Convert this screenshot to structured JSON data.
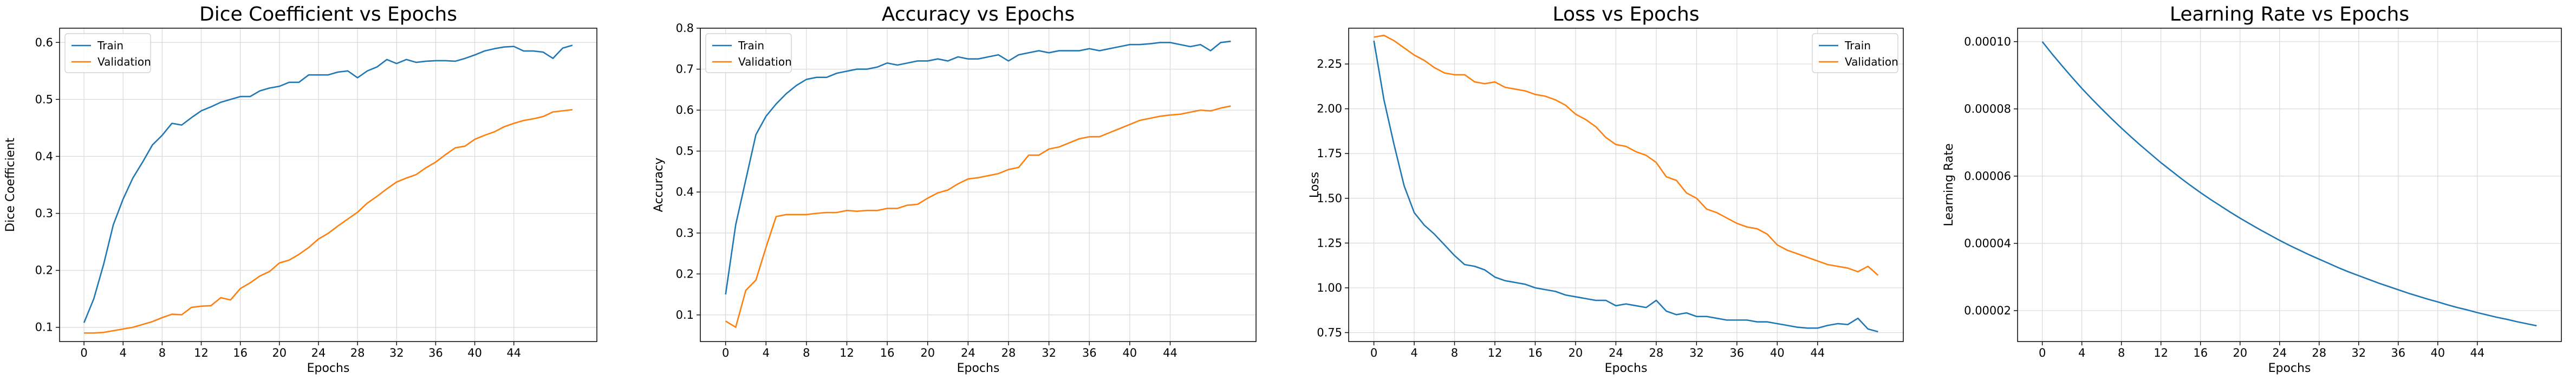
{
  "chart_data": [
    {
      "type": "line",
      "title": "Dice Coefficient vs Epochs",
      "xlabel": "Epochs",
      "ylabel": "Dice Coefficient",
      "xlim": [
        -2.5,
        52.5
      ],
      "ylim": [
        0.075,
        0.625
      ],
      "xticks": [
        0,
        4,
        8,
        12,
        16,
        20,
        24,
        28,
        32,
        36,
        40,
        44
      ],
      "yticks": [
        0.1,
        0.2,
        0.3,
        0.4,
        0.5,
        0.6
      ],
      "ytick_labels": [
        "0.1",
        "0.2",
        "0.3",
        "0.4",
        "0.5",
        "0.6"
      ],
      "grid": true,
      "legend": "upper left",
      "series": [
        {
          "name": "Train",
          "color": "#1f77b4",
          "x": [
            0,
            1,
            2,
            3,
            4,
            5,
            6,
            7,
            8,
            9,
            10,
            11,
            12,
            13,
            14,
            15,
            16,
            17,
            18,
            19,
            20,
            21,
            22,
            23,
            24,
            25,
            26,
            27,
            28,
            29,
            30,
            31,
            32,
            33,
            34,
            35,
            36,
            37,
            38,
            39,
            40,
            41,
            42,
            43,
            44,
            45,
            46,
            47,
            48,
            49,
            50
          ],
          "values": [
            0.108,
            0.15,
            0.21,
            0.28,
            0.325,
            0.362,
            0.39,
            0.42,
            0.437,
            0.458,
            0.455,
            0.468,
            0.48,
            0.487,
            0.495,
            0.5,
            0.505,
            0.505,
            0.515,
            0.52,
            0.523,
            0.53,
            0.53,
            0.543,
            0.543,
            0.543,
            0.548,
            0.55,
            0.538,
            0.55,
            0.557,
            0.57,
            0.563,
            0.57,
            0.565,
            0.567,
            0.568,
            0.568,
            0.567,
            0.572,
            0.578,
            0.585,
            0.589,
            0.592,
            0.593,
            0.585,
            0.585,
            0.583,
            0.572,
            0.59,
            0.595
          ]
        },
        {
          "name": "Validation",
          "color": "#ff7f0e",
          "x": [
            0,
            1,
            2,
            3,
            4,
            5,
            6,
            7,
            8,
            9,
            10,
            11,
            12,
            13,
            14,
            15,
            16,
            17,
            18,
            19,
            20,
            21,
            22,
            23,
            24,
            25,
            26,
            27,
            28,
            29,
            30,
            31,
            32,
            33,
            34,
            35,
            36,
            37,
            38,
            39,
            40,
            41,
            42,
            43,
            44,
            45,
            46,
            47,
            48,
            49,
            50
          ],
          "values": [
            0.09,
            0.09,
            0.091,
            0.094,
            0.097,
            0.1,
            0.105,
            0.11,
            0.117,
            0.123,
            0.122,
            0.135,
            0.137,
            0.138,
            0.152,
            0.148,
            0.168,
            0.178,
            0.19,
            0.198,
            0.213,
            0.218,
            0.228,
            0.24,
            0.255,
            0.265,
            0.278,
            0.29,
            0.302,
            0.318,
            0.33,
            0.343,
            0.355,
            0.362,
            0.368,
            0.38,
            0.39,
            0.403,
            0.415,
            0.418,
            0.43,
            0.437,
            0.443,
            0.452,
            0.458,
            0.463,
            0.466,
            0.47,
            0.478,
            0.48,
            0.482
          ]
        }
      ]
    },
    {
      "type": "line",
      "title": "Accuracy vs Epochs",
      "xlabel": "Epochs",
      "ylabel": "Accuracy",
      "xlim": [
        -2.5,
        52.5
      ],
      "ylim": [
        0.035,
        0.8
      ],
      "xticks": [
        0,
        4,
        8,
        12,
        16,
        20,
        24,
        28,
        32,
        36,
        40,
        44
      ],
      "yticks": [
        0.1,
        0.2,
        0.3,
        0.4,
        0.5,
        0.6,
        0.7,
        0.8
      ],
      "ytick_labels": [
        "0.1",
        "0.2",
        "0.3",
        "0.4",
        "0.5",
        "0.6",
        "0.7",
        "0.8"
      ],
      "grid": true,
      "legend": "upper left",
      "series": [
        {
          "name": "Train",
          "color": "#1f77b4",
          "x": [
            0,
            1,
            2,
            3,
            4,
            5,
            6,
            7,
            8,
            9,
            10,
            11,
            12,
            13,
            14,
            15,
            16,
            17,
            18,
            19,
            20,
            21,
            22,
            23,
            24,
            25,
            26,
            27,
            28,
            29,
            30,
            31,
            32,
            33,
            34,
            35,
            36,
            37,
            38,
            39,
            40,
            41,
            42,
            43,
            44,
            45,
            46,
            47,
            48,
            49,
            50
          ],
          "values": [
            0.15,
            0.32,
            0.43,
            0.54,
            0.585,
            0.615,
            0.64,
            0.66,
            0.675,
            0.68,
            0.68,
            0.69,
            0.695,
            0.7,
            0.7,
            0.705,
            0.715,
            0.71,
            0.715,
            0.72,
            0.72,
            0.725,
            0.72,
            0.73,
            0.725,
            0.725,
            0.73,
            0.735,
            0.72,
            0.735,
            0.74,
            0.745,
            0.74,
            0.745,
            0.745,
            0.745,
            0.75,
            0.745,
            0.75,
            0.755,
            0.76,
            0.76,
            0.762,
            0.765,
            0.765,
            0.76,
            0.755,
            0.76,
            0.745,
            0.765,
            0.768
          ]
        },
        {
          "name": "Validation",
          "color": "#ff7f0e",
          "x": [
            0,
            1,
            2,
            3,
            4,
            5,
            6,
            7,
            8,
            9,
            10,
            11,
            12,
            13,
            14,
            15,
            16,
            17,
            18,
            19,
            20,
            21,
            22,
            23,
            24,
            25,
            26,
            27,
            28,
            29,
            30,
            31,
            32,
            33,
            34,
            35,
            36,
            37,
            38,
            39,
            40,
            41,
            42,
            43,
            44,
            45,
            46,
            47,
            48,
            49,
            50
          ],
          "values": [
            0.085,
            0.07,
            0.16,
            0.185,
            0.265,
            0.34,
            0.345,
            0.345,
            0.345,
            0.348,
            0.35,
            0.35,
            0.355,
            0.353,
            0.355,
            0.355,
            0.36,
            0.36,
            0.368,
            0.37,
            0.385,
            0.398,
            0.405,
            0.42,
            0.432,
            0.435,
            0.44,
            0.445,
            0.455,
            0.46,
            0.49,
            0.49,
            0.505,
            0.51,
            0.52,
            0.53,
            0.535,
            0.535,
            0.545,
            0.555,
            0.565,
            0.575,
            0.58,
            0.585,
            0.588,
            0.59,
            0.595,
            0.6,
            0.598,
            0.605,
            0.61
          ]
        }
      ]
    },
    {
      "type": "line",
      "title": "Loss vs Epochs",
      "xlabel": "Epochs",
      "ylabel": "Loss",
      "xlim": [
        -2.5,
        52.5
      ],
      "ylim": [
        0.7,
        2.45
      ],
      "xticks": [
        0,
        4,
        8,
        12,
        16,
        20,
        24,
        28,
        32,
        36,
        40,
        44
      ],
      "yticks": [
        0.75,
        1.0,
        1.25,
        1.5,
        1.75,
        2.0,
        2.25
      ],
      "ytick_labels": [
        "0.75",
        "1.00",
        "1.25",
        "1.50",
        "1.75",
        "2.00",
        "2.25"
      ],
      "grid": true,
      "legend": "upper right",
      "series": [
        {
          "name": "Train",
          "color": "#1f77b4",
          "x": [
            0,
            1,
            2,
            3,
            4,
            5,
            6,
            7,
            8,
            9,
            10,
            11,
            12,
            13,
            14,
            15,
            16,
            17,
            18,
            19,
            20,
            21,
            22,
            23,
            24,
            25,
            26,
            27,
            28,
            29,
            30,
            31,
            32,
            33,
            34,
            35,
            36,
            37,
            38,
            39,
            40,
            41,
            42,
            43,
            44,
            45,
            46,
            47,
            48,
            49,
            50
          ],
          "values": [
            2.38,
            2.05,
            1.8,
            1.57,
            1.42,
            1.35,
            1.3,
            1.24,
            1.18,
            1.13,
            1.12,
            1.1,
            1.06,
            1.04,
            1.03,
            1.02,
            1.0,
            0.99,
            0.98,
            0.96,
            0.95,
            0.94,
            0.93,
            0.93,
            0.9,
            0.91,
            0.9,
            0.89,
            0.93,
            0.87,
            0.85,
            0.86,
            0.84,
            0.84,
            0.83,
            0.82,
            0.82,
            0.82,
            0.81,
            0.81,
            0.8,
            0.79,
            0.78,
            0.775,
            0.775,
            0.79,
            0.8,
            0.795,
            0.83,
            0.77,
            0.755
          ]
        },
        {
          "name": "Validation",
          "color": "#ff7f0e",
          "x": [
            0,
            1,
            2,
            3,
            4,
            5,
            6,
            7,
            8,
            9,
            10,
            11,
            12,
            13,
            14,
            15,
            16,
            17,
            18,
            19,
            20,
            21,
            22,
            23,
            24,
            25,
            26,
            27,
            28,
            29,
            30,
            31,
            32,
            33,
            34,
            35,
            36,
            37,
            38,
            39,
            40,
            41,
            42,
            43,
            44,
            45,
            46,
            47,
            48,
            49,
            50
          ],
          "values": [
            2.4,
            2.41,
            2.38,
            2.34,
            2.3,
            2.27,
            2.23,
            2.2,
            2.19,
            2.19,
            2.15,
            2.14,
            2.15,
            2.12,
            2.11,
            2.1,
            2.08,
            2.07,
            2.05,
            2.02,
            1.97,
            1.94,
            1.9,
            1.84,
            1.8,
            1.79,
            1.76,
            1.74,
            1.7,
            1.62,
            1.6,
            1.53,
            1.5,
            1.44,
            1.42,
            1.39,
            1.36,
            1.34,
            1.33,
            1.3,
            1.24,
            1.21,
            1.19,
            1.17,
            1.15,
            1.13,
            1.12,
            1.11,
            1.09,
            1.12,
            1.07
          ]
        }
      ]
    },
    {
      "type": "line",
      "title": "Learning Rate vs Epochs",
      "xlabel": "Epochs",
      "ylabel": "Learning Rate",
      "xlim": [
        -2.5,
        52.5
      ],
      "ylim": [
        1.08e-05,
        0.000104
      ],
      "xticks": [
        0,
        4,
        8,
        12,
        16,
        20,
        24,
        28,
        32,
        36,
        40,
        44
      ],
      "yticks": [
        2e-05,
        4e-05,
        6e-05,
        8e-05,
        0.0001
      ],
      "ytick_labels": [
        "0.00002",
        "0.00004",
        "0.00006",
        "0.00008",
        "0.00010"
      ],
      "grid": true,
      "legend": "none",
      "series": [
        {
          "color": "#1f77b4",
          "x": [
            0,
            1,
            2,
            3,
            4,
            5,
            6,
            7,
            8,
            9,
            10,
            11,
            12,
            13,
            14,
            15,
            16,
            17,
            18,
            19,
            20,
            21,
            22,
            23,
            24,
            25,
            26,
            27,
            28,
            29,
            30,
            31,
            32,
            33,
            34,
            35,
            36,
            37,
            38,
            39,
            40,
            41,
            42,
            43,
            44,
            45,
            46,
            47,
            48,
            49,
            50
          ],
          "values": [
            0.0001,
            9.63e-05,
            9.28e-05,
            8.94e-05,
            8.61e-05,
            8.3e-05,
            8e-05,
            7.71e-05,
            7.43e-05,
            7.16e-05,
            6.9e-05,
            6.65e-05,
            6.4e-05,
            6.17e-05,
            5.94e-05,
            5.72e-05,
            5.51e-05,
            5.31e-05,
            5.12e-05,
            4.93e-05,
            4.75e-05,
            4.58e-05,
            4.41e-05,
            4.25e-05,
            4.09e-05,
            3.94e-05,
            3.8e-05,
            3.66e-05,
            3.53e-05,
            3.4e-05,
            3.27e-05,
            3.15e-05,
            3.04e-05,
            2.93e-05,
            2.82e-05,
            2.72e-05,
            2.62e-05,
            2.52e-05,
            2.43e-05,
            2.34e-05,
            2.26e-05,
            2.17e-05,
            2.09e-05,
            2.02e-05,
            1.94e-05,
            1.87e-05,
            1.8e-05,
            1.74e-05,
            1.67e-05,
            1.61e-05,
            1.55e-05
          ]
        }
      ]
    }
  ]
}
